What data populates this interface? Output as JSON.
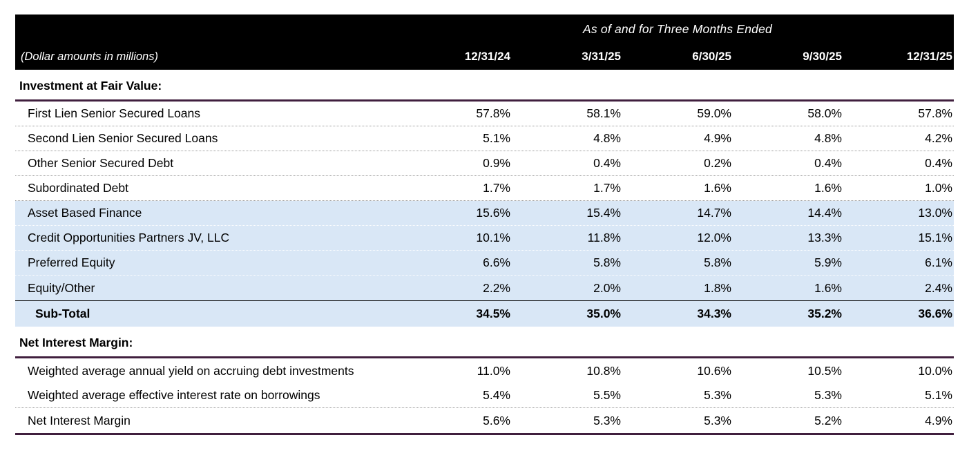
{
  "table": {
    "header": {
      "left_label": "(Dollar amounts in millions)",
      "group_label": "As of and for Three Months Ended",
      "columns": [
        "12/31/24",
        "3/31/25",
        "6/30/25",
        "9/30/25",
        "12/31/25"
      ]
    },
    "sections": [
      {
        "title": "Investment at Fair Value:",
        "closing_rule": false,
        "rows": [
          {
            "label": "First Lien Senior Secured Loans",
            "values": [
              "57.8%",
              "58.1%",
              "59.0%",
              "58.0%",
              "57.8%"
            ],
            "highlight": false,
            "emphasis": false,
            "indent": false,
            "sep": "dotted",
            "rule_above": false
          },
          {
            "label": "Second Lien Senior Secured Loans",
            "values": [
              "5.1%",
              "4.8%",
              "4.9%",
              "4.8%",
              "4.2%"
            ],
            "highlight": false,
            "emphasis": false,
            "indent": false,
            "sep": "dotted",
            "rule_above": false
          },
          {
            "label": "Other Senior Secured Debt",
            "values": [
              "0.9%",
              "0.4%",
              "0.2%",
              "0.4%",
              "0.4%"
            ],
            "highlight": false,
            "emphasis": false,
            "indent": false,
            "sep": "dotted",
            "rule_above": false
          },
          {
            "label": "Subordinated Debt",
            "values": [
              "1.7%",
              "1.7%",
              "1.6%",
              "1.6%",
              "1.0%"
            ],
            "highlight": false,
            "emphasis": false,
            "indent": false,
            "sep": "dotted",
            "rule_above": false
          },
          {
            "label": "Asset Based Finance",
            "values": [
              "15.6%",
              "15.4%",
              "14.7%",
              "14.4%",
              "13.0%"
            ],
            "highlight": true,
            "emphasis": false,
            "indent": false,
            "sep": "dotted",
            "rule_above": false
          },
          {
            "label": "Credit Opportunities Partners JV, LLC",
            "values": [
              "10.1%",
              "11.8%",
              "12.0%",
              "13.3%",
              "15.1%"
            ],
            "highlight": true,
            "emphasis": false,
            "indent": false,
            "sep": "dotted",
            "rule_above": false
          },
          {
            "label": "Preferred Equity",
            "values": [
              "6.6%",
              "5.8%",
              "5.8%",
              "5.9%",
              "6.1%"
            ],
            "highlight": true,
            "emphasis": false,
            "indent": false,
            "sep": "dotted",
            "rule_above": false
          },
          {
            "label": "Equity/Other",
            "values": [
              "2.2%",
              "2.0%",
              "1.8%",
              "1.6%",
              "2.4%"
            ],
            "highlight": true,
            "emphasis": false,
            "indent": false,
            "sep": "none",
            "rule_above": false
          },
          {
            "label": "Sub-Total",
            "values": [
              "34.5%",
              "35.0%",
              "34.3%",
              "35.2%",
              "36.6%"
            ],
            "highlight": true,
            "emphasis": true,
            "indent": true,
            "sep": "none",
            "rule_above": true
          }
        ]
      },
      {
        "title": "Net Interest Margin:",
        "closing_rule": true,
        "rows": [
          {
            "label": "Weighted average annual yield on accruing debt investments",
            "values": [
              "11.0%",
              "10.8%",
              "10.6%",
              "10.5%",
              "10.0%"
            ],
            "highlight": false,
            "emphasis": false,
            "indent": false,
            "sep": "none",
            "rule_above": false
          },
          {
            "label": "Weighted average effective interest rate on borrowings",
            "values": [
              "5.4%",
              "5.5%",
              "5.3%",
              "5.3%",
              "5.1%"
            ],
            "highlight": false,
            "emphasis": false,
            "indent": false,
            "sep": "dotted",
            "rule_above": false
          },
          {
            "label": "Net Interest Margin",
            "values": [
              "5.6%",
              "5.3%",
              "5.3%",
              "5.2%",
              "4.9%"
            ],
            "highlight": false,
            "emphasis": false,
            "indent": false,
            "sep": "none",
            "rule_above": false
          }
        ]
      }
    ]
  },
  "colors": {
    "header_bg": "#000000",
    "header_text": "#ffffff",
    "highlight_bg": "#d9e7f6",
    "accent_line": "#401f3e"
  }
}
